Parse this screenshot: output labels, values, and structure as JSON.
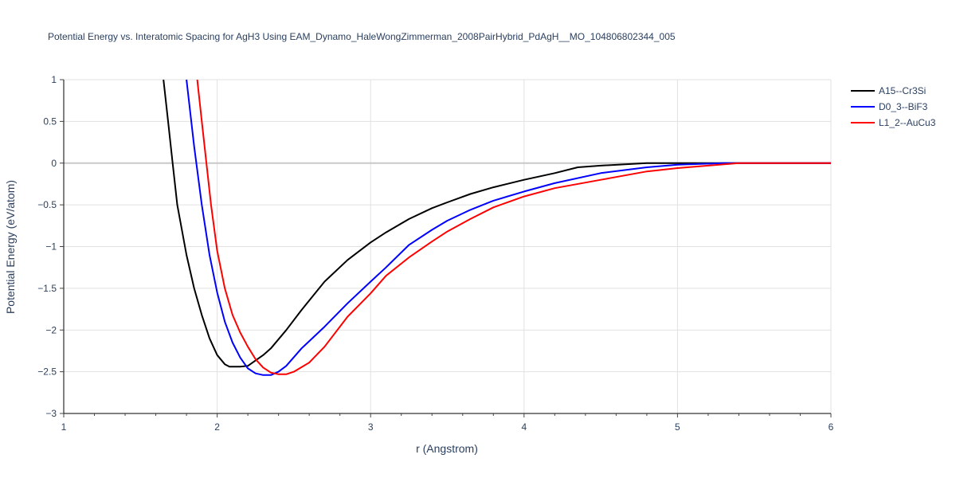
{
  "chart_data": {
    "type": "line",
    "title": "Potential Energy vs. Interatomic Spacing for AgH3 Using EAM_Dynamo_HaleWongZimmerman_2008PairHybrid_PdAgH__MO_104806802344_005",
    "xlabel": "r (Angstrom)",
    "ylabel": "Potential Energy (eV/atom)",
    "xlim": [
      1,
      6
    ],
    "ylim": [
      -3,
      1
    ],
    "xticks": [
      1,
      2,
      3,
      4,
      5,
      6
    ],
    "xtick_labels": [
      "1",
      "2",
      "3",
      "4",
      "5",
      "6"
    ],
    "yticks": [
      -3,
      -2.5,
      -2,
      -1.5,
      -1,
      -0.5,
      0,
      0.5,
      1
    ],
    "ytick_labels": [
      "−3",
      "−2.5",
      "−2",
      "−1.5",
      "−1",
      "−0.5",
      "0",
      "0.5",
      "1"
    ],
    "grid": true,
    "legend_position": "top-right",
    "series": [
      {
        "name": "A15--Cr3Si",
        "color": "#000000",
        "x": [
          1.65,
          1.68,
          1.71,
          1.74,
          1.77,
          1.8,
          1.85,
          1.9,
          1.95,
          2.0,
          2.05,
          2.08,
          2.1,
          2.15,
          2.2,
          2.3,
          2.35,
          2.45,
          2.55,
          2.7,
          2.85,
          3.0,
          3.1,
          3.25,
          3.4,
          3.5,
          3.65,
          3.8,
          4.0,
          4.2,
          4.35,
          4.5,
          4.8,
          5.0,
          5.3,
          5.5,
          6.0
        ],
        "y": [
          1.0,
          0.5,
          0.0,
          -0.5,
          -0.8,
          -1.1,
          -1.5,
          -1.82,
          -2.1,
          -2.3,
          -2.41,
          -2.44,
          -2.44,
          -2.44,
          -2.43,
          -2.3,
          -2.22,
          -2.0,
          -1.76,
          -1.42,
          -1.16,
          -0.95,
          -0.83,
          -0.67,
          -0.54,
          -0.47,
          -0.37,
          -0.29,
          -0.2,
          -0.12,
          -0.05,
          -0.03,
          0.0,
          0.0,
          0.0,
          0.0,
          0.0
        ]
      },
      {
        "name": "D0_3--BiF3",
        "color": "#0000ff",
        "x": [
          1.8,
          1.85,
          1.9,
          1.95,
          2.0,
          2.05,
          2.1,
          2.15,
          2.2,
          2.25,
          2.3,
          2.35,
          2.4,
          2.45,
          2.55,
          2.7,
          2.85,
          3.0,
          3.1,
          3.25,
          3.4,
          3.5,
          3.65,
          3.8,
          4.0,
          4.2,
          4.5,
          4.8,
          5.0,
          5.3,
          5.5,
          6.0
        ],
        "y": [
          1.0,
          0.2,
          -0.5,
          -1.1,
          -1.55,
          -1.9,
          -2.15,
          -2.33,
          -2.46,
          -2.52,
          -2.54,
          -2.54,
          -2.5,
          -2.43,
          -2.22,
          -1.96,
          -1.68,
          -1.42,
          -1.25,
          -0.98,
          -0.8,
          -0.69,
          -0.56,
          -0.45,
          -0.34,
          -0.24,
          -0.12,
          -0.05,
          -0.02,
          0.0,
          0.0,
          0.0
        ]
      },
      {
        "name": "L1_2--AuCu3",
        "color": "#ff0000",
        "x": [
          1.87,
          1.9,
          1.93,
          1.96,
          2.0,
          2.05,
          2.1,
          2.15,
          2.2,
          2.25,
          2.3,
          2.35,
          2.4,
          2.45,
          2.5,
          2.6,
          2.7,
          2.85,
          3.0,
          3.1,
          3.25,
          3.4,
          3.5,
          3.65,
          3.8,
          4.0,
          4.2,
          4.5,
          4.8,
          5.0,
          5.2,
          5.4,
          6.0
        ],
        "y": [
          1.0,
          0.5,
          0.0,
          -0.5,
          -1.05,
          -1.5,
          -1.82,
          -2.03,
          -2.2,
          -2.35,
          -2.45,
          -2.51,
          -2.53,
          -2.53,
          -2.5,
          -2.39,
          -2.2,
          -1.84,
          -1.56,
          -1.35,
          -1.13,
          -0.94,
          -0.82,
          -0.67,
          -0.53,
          -0.4,
          -0.3,
          -0.2,
          -0.1,
          -0.06,
          -0.03,
          0.0,
          0.0
        ]
      }
    ]
  }
}
